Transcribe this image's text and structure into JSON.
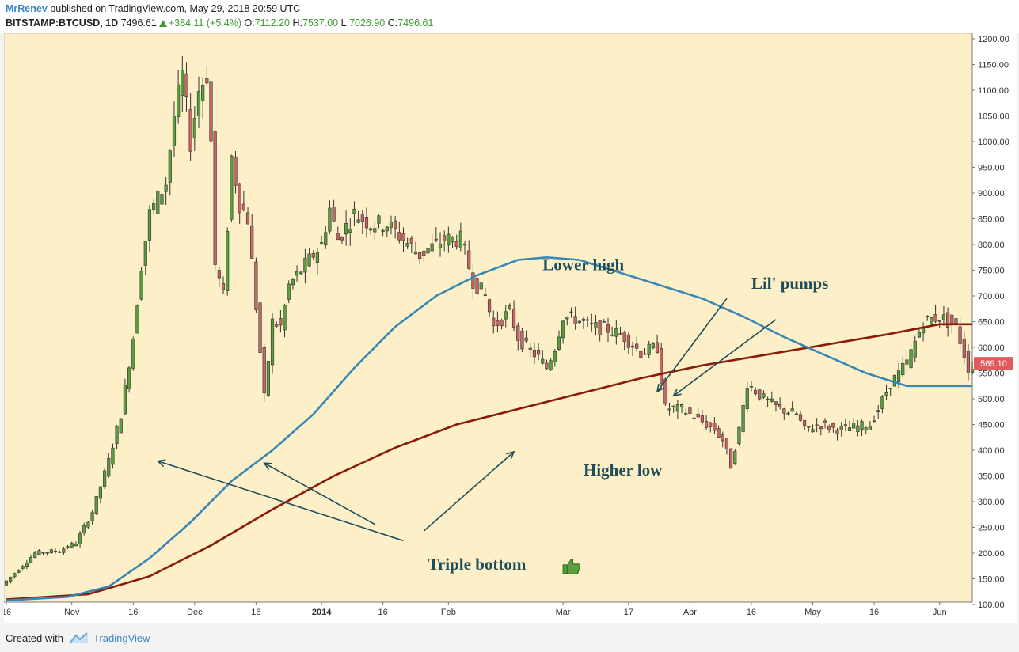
{
  "header": {
    "author": "MrRenev",
    "published": "published on TradingView.com, May 29, 2018 20:59 UTC",
    "symbol": "BITSTAMP:BTCUSD, 1D",
    "last": "7496.61",
    "change": "+384.11 (+5.4%)",
    "o_label": "O:",
    "o": "7112.20",
    "h_label": "H:",
    "h": "7537.00",
    "l_label": "L:",
    "l": "7026.90",
    "c_label": "C:",
    "c": "7496.61"
  },
  "footer": {
    "created_with": "Created with",
    "brand": "TradingView"
  },
  "chart_data": {
    "type": "candlestick",
    "background": "#fdf0c8",
    "up_color": "#5a9e3e",
    "down_color": "#c86462",
    "ma_fast_color": "#3a86b5",
    "ma_slow_color": "#8b1a0a",
    "annotation_color": "#1f4e5a",
    "ylim": [
      100,
      1200
    ],
    "yticks": [
      "1200.00",
      "1150.00",
      "1100.00",
      "1050.00",
      "1000.00",
      "950.00",
      "900.00",
      "850.00",
      "800.00",
      "750.00",
      "700.00",
      "650.00",
      "600.00",
      "550.00",
      "500.00",
      "450.00",
      "400.00",
      "350.00",
      "300.00",
      "250.00",
      "200.00",
      "150.00",
      "100.00"
    ],
    "ytick_values": [
      1200,
      1150,
      1100,
      1050,
      1000,
      950,
      900,
      850,
      800,
      750,
      700,
      650,
      600,
      550,
      500,
      450,
      400,
      350,
      300,
      250,
      200,
      150,
      100
    ],
    "xticks": [
      {
        "label": "16",
        "day": 0
      },
      {
        "label": "Nov",
        "day": 16
      },
      {
        "label": "16",
        "day": 31
      },
      {
        "label": "Dec",
        "day": 46
      },
      {
        "label": "16",
        "day": 61
      },
      {
        "label": "2014",
        "day": 77
      },
      {
        "label": "16",
        "day": 92
      },
      {
        "label": "Feb",
        "day": 108
      },
      {
        "label": "Mar",
        "day": 136
      },
      {
        "label": "17",
        "day": 152
      },
      {
        "label": "Apr",
        "day": 167
      },
      {
        "label": "16",
        "day": 182
      },
      {
        "label": "May",
        "day": 197
      },
      {
        "label": "16",
        "day": 212
      },
      {
        "label": "Jun",
        "day": 228
      }
    ],
    "last_price_label": "569.10",
    "last_price": 569.1,
    "last_price_color": "#e05b5b",
    "price_path": [
      [
        0,
        138
      ],
      [
        8,
        200
      ],
      [
        14,
        205
      ],
      [
        18,
        220
      ],
      [
        22,
        280
      ],
      [
        26,
        380
      ],
      [
        29,
        470
      ],
      [
        32,
        620
      ],
      [
        34,
        760
      ],
      [
        36,
        860
      ],
      [
        40,
        920
      ],
      [
        42,
        1050
      ],
      [
        44,
        1130
      ],
      [
        46,
        1000
      ],
      [
        48,
        1100
      ],
      [
        50,
        1130
      ],
      [
        51,
        1000
      ],
      [
        52,
        760
      ],
      [
        54,
        700
      ],
      [
        56,
        970
      ],
      [
        58,
        880
      ],
      [
        60,
        850
      ],
      [
        62,
        680
      ],
      [
        64,
        500
      ],
      [
        66,
        650
      ],
      [
        68,
        640
      ],
      [
        70,
        720
      ],
      [
        74,
        760
      ],
      [
        78,
        800
      ],
      [
        80,
        870
      ],
      [
        82,
        810
      ],
      [
        86,
        860
      ],
      [
        88,
        850
      ],
      [
        90,
        840
      ],
      [
        94,
        840
      ],
      [
        98,
        810
      ],
      [
        102,
        780
      ],
      [
        106,
        800
      ],
      [
        108,
        810
      ],
      [
        112,
        810
      ],
      [
        115,
        730
      ],
      [
        118,
        700
      ],
      [
        120,
        640
      ],
      [
        124,
        670
      ],
      [
        126,
        620
      ],
      [
        128,
        600
      ],
      [
        131,
        580
      ],
      [
        133,
        560
      ],
      [
        135,
        600
      ],
      [
        137,
        660
      ],
      [
        140,
        655
      ],
      [
        144,
        640
      ],
      [
        148,
        635
      ],
      [
        152,
        620
      ],
      [
        156,
        590
      ],
      [
        160,
        600
      ],
      [
        162,
        480
      ],
      [
        166,
        480
      ],
      [
        170,
        460
      ],
      [
        174,
        440
      ],
      [
        176,
        420
      ],
      [
        178,
        370
      ],
      [
        180,
        440
      ],
      [
        182,
        530
      ],
      [
        186,
        500
      ],
      [
        190,
        480
      ],
      [
        194,
        470
      ],
      [
        196,
        440
      ],
      [
        200,
        450
      ],
      [
        204,
        440
      ],
      [
        208,
        445
      ],
      [
        212,
        450
      ],
      [
        214,
        480
      ],
      [
        217,
        530
      ],
      [
        221,
        570
      ],
      [
        225,
        650
      ],
      [
        229,
        660
      ],
      [
        233,
        640
      ],
      [
        236,
        560
      ]
    ],
    "ma_fast_path": [
      [
        0,
        108
      ],
      [
        15,
        115
      ],
      [
        25,
        135
      ],
      [
        35,
        190
      ],
      [
        45,
        260
      ],
      [
        55,
        340
      ],
      [
        65,
        400
      ],
      [
        75,
        470
      ],
      [
        85,
        560
      ],
      [
        95,
        640
      ],
      [
        105,
        700
      ],
      [
        115,
        740
      ],
      [
        125,
        770
      ],
      [
        132,
        775
      ],
      [
        140,
        770
      ],
      [
        150,
        745
      ],
      [
        160,
        720
      ],
      [
        170,
        695
      ],
      [
        180,
        660
      ],
      [
        190,
        620
      ],
      [
        200,
        585
      ],
      [
        210,
        550
      ],
      [
        220,
        525
      ],
      [
        230,
        525
      ],
      [
        236,
        525
      ]
    ],
    "ma_slow_path": [
      [
        0,
        110
      ],
      [
        20,
        120
      ],
      [
        35,
        155
      ],
      [
        50,
        215
      ],
      [
        65,
        285
      ],
      [
        80,
        350
      ],
      [
        95,
        405
      ],
      [
        110,
        450
      ],
      [
        125,
        480
      ],
      [
        140,
        510
      ],
      [
        155,
        540
      ],
      [
        170,
        565
      ],
      [
        185,
        585
      ],
      [
        200,
        605
      ],
      [
        215,
        625
      ],
      [
        228,
        645
      ],
      [
        236,
        645
      ]
    ],
    "annotations": [
      {
        "text": "Lower high",
        "day": 131,
        "price": 750
      },
      {
        "text": "Lil' pumps",
        "day": 182,
        "price": 714
      },
      {
        "text": "Higher low",
        "day": 141,
        "price": 351
      },
      {
        "text": "Triple bottom",
        "day": 103,
        "price": 168
      }
    ],
    "arrows": [
      [
        [
          97,
          224
        ],
        [
          37,
          379
        ]
      ],
      [
        [
          90,
          256
        ],
        [
          63,
          375
        ]
      ],
      [
        [
          102,
          243
        ],
        [
          124,
          397
        ]
      ],
      [
        [
          176,
          695
        ],
        [
          159,
          514
        ]
      ],
      [
        [
          188,
          654
        ],
        [
          163,
          506
        ]
      ]
    ],
    "thumbs_icon": "thumbs-up-icon",
    "thumbs_day": 136,
    "thumbs_price": 168
  }
}
